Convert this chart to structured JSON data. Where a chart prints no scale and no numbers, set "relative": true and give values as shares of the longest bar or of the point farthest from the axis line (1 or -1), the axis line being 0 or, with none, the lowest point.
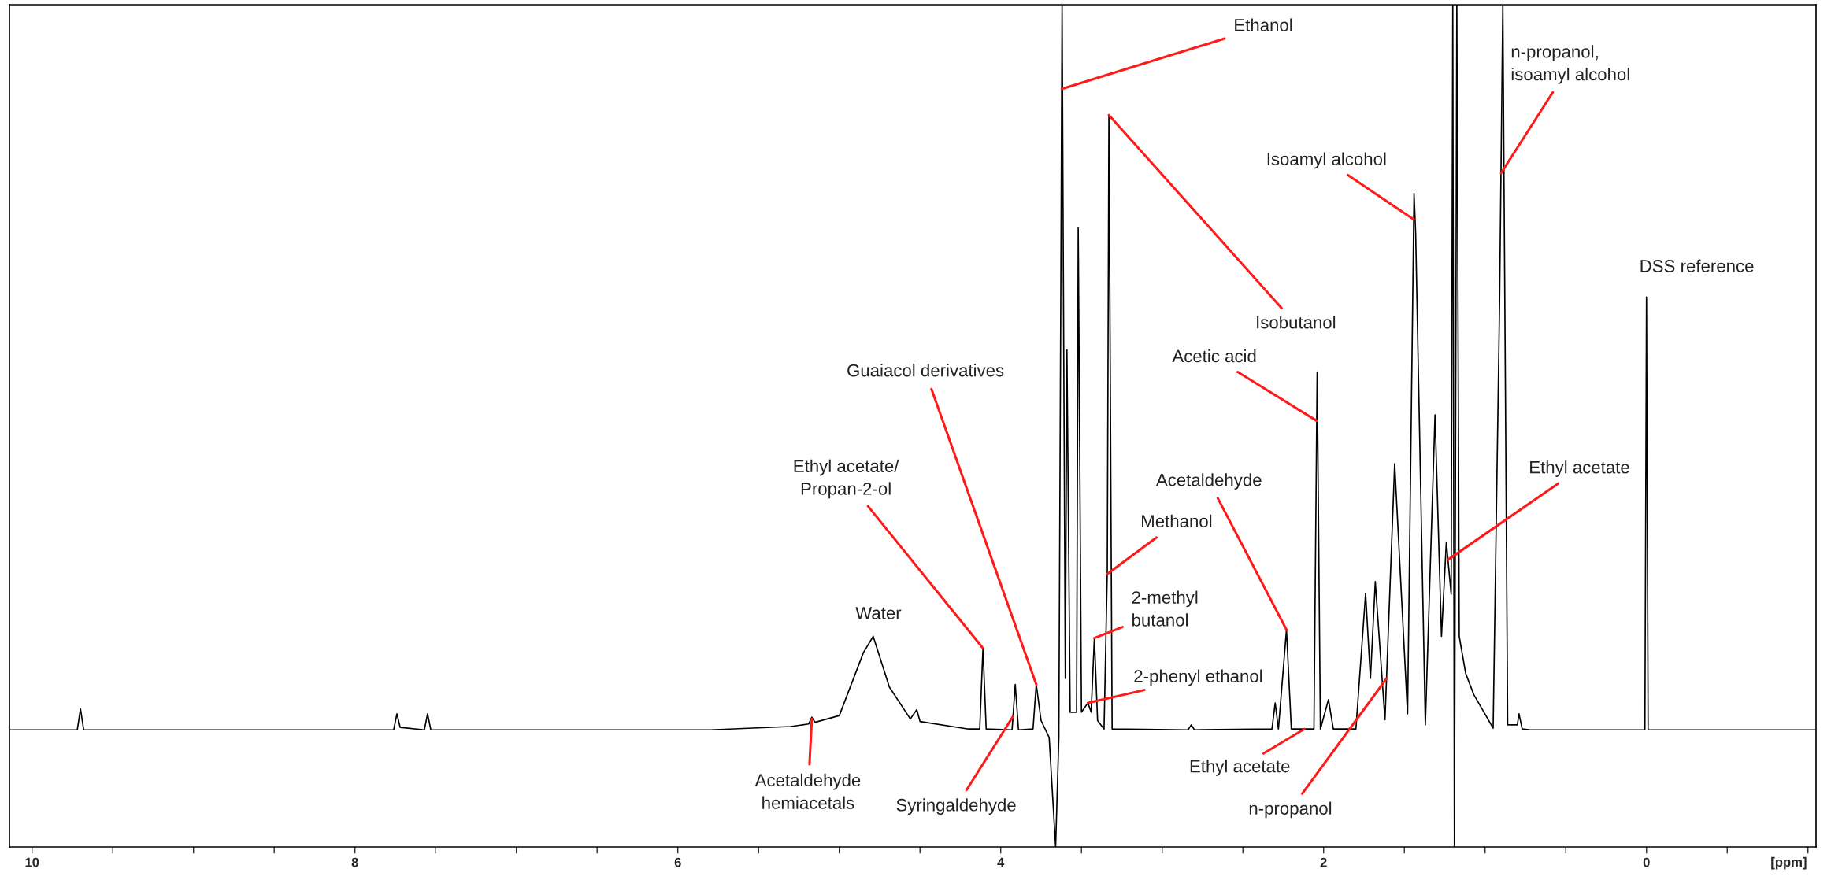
{
  "chart_data": {
    "type": "line",
    "relative": true,
    "xlabel": "[ppm]",
    "xlim": [
      10.14,
      -1.05
    ],
    "xticks": [
      10,
      {
        "value": 9.5,
        "label": null
      },
      {
        "value": 9,
        "label": null
      },
      {
        "value": 8.5,
        "label": null
      },
      8,
      {
        "value": 7.5,
        "label": null
      },
      {
        "value": 7,
        "label": null
      },
      {
        "value": 6.5,
        "label": null
      },
      6,
      {
        "value": 5.5,
        "label": null
      },
      {
        "value": 5,
        "label": null
      },
      {
        "value": 4.5,
        "label": null
      },
      4,
      {
        "value": 3.5,
        "label": null
      },
      {
        "value": 3,
        "label": null
      },
      {
        "value": 2.5,
        "label": null
      },
      2,
      {
        "value": 1.5,
        "label": null
      },
      {
        "value": 1,
        "label": null
      },
      {
        "value": 0.5,
        "label": null
      },
      0,
      {
        "value": -0.5,
        "label": null
      },
      {
        "value": -1,
        "label": null
      }
    ],
    "tick_labels": "x",
    "marker": "none",
    "line_style": "solid",
    "x": [
      10.14,
      9.72,
      9.7,
      9.68,
      7.76,
      7.74,
      7.72,
      7.57,
      7.55,
      7.53,
      5.8,
      5.3,
      5.19,
      5.17,
      5.15,
      5.0,
      4.85,
      4.79,
      4.69,
      4.56,
      4.52,
      4.5,
      4.2,
      4.13,
      4.11,
      4.09,
      3.93,
      3.91,
      3.89,
      3.8,
      3.78,
      3.75,
      3.7,
      3.66,
      3.64,
      3.62,
      3.6,
      3.59,
      3.57,
      3.53,
      3.52,
      3.5,
      3.46,
      3.44,
      3.42,
      3.4,
      3.36,
      3.34,
      3.33,
      3.31,
      2.84,
      2.82,
      2.8,
      2.32,
      2.3,
      2.28,
      2.23,
      2.2,
      2.06,
      2.04,
      2.02,
      1.97,
      1.94,
      1.8,
      1.74,
      1.71,
      1.68,
      1.62,
      1.56,
      1.48,
      1.44,
      1.43,
      1.37,
      1.31,
      1.27,
      1.24,
      1.21,
      1.2,
      1.19,
      1.175,
      1.16,
      1.12,
      1.07,
      0.95,
      0.91,
      0.89,
      0.86,
      0.8,
      0.79,
      0.77,
      0.72,
      0.01,
      0.0,
      -0.01,
      -1.05
    ],
    "series": [
      {
        "color": "#000000",
        "values": [
          0.139,
          0.139,
          0.164,
          0.139,
          0.139,
          0.158,
          0.142,
          0.139,
          0.158,
          0.139,
          0.139,
          0.143,
          0.146,
          0.154,
          0.148,
          0.156,
          0.231,
          0.25,
          0.19,
          0.152,
          0.163,
          0.149,
          0.14,
          0.14,
          0.236,
          0.14,
          0.139,
          0.193,
          0.139,
          0.14,
          0.193,
          0.15,
          0.13,
          0.0,
          0.13,
          1.0,
          0.2,
          0.59,
          0.16,
          0.16,
          0.735,
          0.16,
          0.171,
          0.16,
          0.248,
          0.15,
          0.14,
          0.328,
          0.869,
          0.14,
          0.139,
          0.145,
          0.139,
          0.14,
          0.171,
          0.14,
          0.258,
          0.14,
          0.14,
          0.564,
          0.14,
          0.175,
          0.14,
          0.14,
          0.301,
          0.2,
          0.315,
          0.151,
          0.455,
          0.158,
          0.776,
          0.729,
          0.145,
          0.513,
          0.25,
          0.362,
          0.3,
          1.0,
          0.0,
          1.0,
          0.25,
          0.206,
          0.181,
          0.141,
          0.649,
          1.0,
          0.145,
          0.145,
          0.158,
          0.14,
          0.139,
          0.139,
          0.653,
          0.139,
          0.139
        ]
      }
    ],
    "annotations": [
      {
        "text": "Ethanol",
        "x": 3.622,
        "y": 0.9
      },
      {
        "text": "n-propanol,\nisoamyl alcohol",
        "x": 0.901,
        "y": 0.8
      },
      {
        "text": "Isoamyl alcohol",
        "x": 1.442,
        "y": 0.745
      },
      {
        "text": "DSS reference",
        "x": 0.0,
        "y": 0.653
      },
      {
        "text": "Isobutanol",
        "x": 3.33,
        "y": 0.869
      },
      {
        "text": "Acetic acid",
        "x": 2.043,
        "y": 0.506
      },
      {
        "text": "Guaiacol derivatives",
        "x": 3.78,
        "y": 0.193
      },
      {
        "text": "Ethyl acetate/\nPropan-2-ol",
        "x": 4.11,
        "y": 0.236
      },
      {
        "text": "Water",
        "x": 4.79,
        "y": 0.25
      },
      {
        "text": "Acetaldehyde\nhemiacetals",
        "x": 5.17,
        "y": 0.152
      },
      {
        "text": "Syringaldehyde",
        "x": 3.924,
        "y": 0.155
      },
      {
        "text": "Methanol",
        "x": 3.34,
        "y": 0.324
      },
      {
        "text": "2-methyl\nbutanol",
        "x": 3.42,
        "y": 0.248
      },
      {
        "text": "2-phenyl ethanol",
        "x": 3.46,
        "y": 0.171
      },
      {
        "text": "Acetaldehyde",
        "x": 2.23,
        "y": 0.258
      },
      {
        "text": "Ethyl acetate",
        "x": 2.12,
        "y": 0.14
      },
      {
        "text": "n-propanol",
        "x": 1.61,
        "y": 0.2
      },
      {
        "text": "Ethyl acetate",
        "x": 1.23,
        "y": 0.341
      }
    ]
  }
}
